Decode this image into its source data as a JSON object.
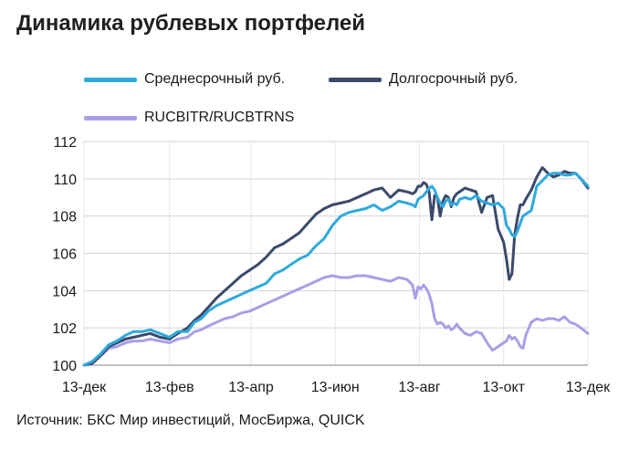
{
  "chart_data": {
    "type": "line",
    "title": "Динамика рублевых портфелей",
    "source": "Источник: БКС Мир инвестиций, МосБиржа, QUICK",
    "ylim": [
      100,
      112
    ],
    "yticks": [
      100,
      102,
      104,
      106,
      108,
      110,
      112
    ],
    "xlim": [
      0,
      365
    ],
    "xticks": [
      {
        "label": "13-дек",
        "x": 0
      },
      {
        "label": "13-фев",
        "x": 62
      },
      {
        "label": "13-апр",
        "x": 121
      },
      {
        "label": "13-июн",
        "x": 182
      },
      {
        "label": "13-авг",
        "x": 243
      },
      {
        "label": "13-окт",
        "x": 304
      },
      {
        "label": "13-дек",
        "x": 365
      }
    ],
    "grid": true,
    "legend_position": "top-left",
    "series": [
      {
        "name": "Среднесрочный руб.",
        "color": "#2eaadc",
        "x": [
          0,
          6,
          12,
          18,
          24,
          30,
          36,
          42,
          48,
          55,
          62,
          68,
          75,
          80,
          85,
          90,
          96,
          102,
          108,
          114,
          120,
          126,
          132,
          138,
          144,
          150,
          156,
          162,
          168,
          174,
          180,
          186,
          192,
          198,
          204,
          210,
          216,
          222,
          228,
          234,
          238,
          240,
          242,
          244,
          246,
          248,
          250,
          252,
          254,
          256,
          258,
          260,
          262,
          264,
          266,
          268,
          270,
          272,
          276,
          280,
          284,
          288,
          292,
          296,
          300,
          304,
          306,
          308,
          310,
          312,
          314,
          316,
          318,
          320,
          324,
          328,
          332,
          336,
          340,
          344,
          348,
          352,
          356,
          360,
          365
        ],
        "values": [
          100.0,
          100.2,
          100.6,
          101.1,
          101.3,
          101.6,
          101.8,
          101.8,
          101.9,
          101.7,
          101.5,
          101.8,
          101.8,
          102.3,
          102.5,
          102.9,
          103.2,
          103.4,
          103.6,
          103.8,
          104.0,
          104.2,
          104.4,
          104.9,
          105.1,
          105.4,
          105.7,
          105.9,
          106.4,
          106.8,
          107.5,
          108.0,
          108.2,
          108.3,
          108.4,
          108.6,
          108.3,
          108.5,
          108.8,
          108.7,
          108.6,
          108.5,
          108.9,
          109.0,
          109.1,
          109.3,
          109.5,
          109.6,
          109.4,
          109.0,
          108.7,
          108.5,
          108.8,
          108.9,
          108.6,
          108.7,
          108.6,
          108.9,
          109.0,
          108.9,
          109.1,
          108.8,
          108.7,
          108.6,
          108.7,
          108.4,
          107.5,
          107.3,
          107.0,
          106.9,
          107.2,
          107.6,
          108.0,
          108.1,
          108.3,
          109.6,
          109.9,
          110.2,
          110.3,
          110.3,
          110.2,
          110.2,
          110.3,
          110.0,
          109.6
        ]
      },
      {
        "name": "Долгосрочный руб.",
        "color": "#3b4a6b",
        "x": [
          0,
          6,
          12,
          18,
          24,
          30,
          36,
          42,
          48,
          55,
          62,
          68,
          75,
          80,
          85,
          90,
          96,
          102,
          108,
          114,
          120,
          126,
          132,
          138,
          144,
          150,
          156,
          162,
          168,
          174,
          180,
          186,
          192,
          198,
          204,
          210,
          216,
          222,
          228,
          234,
          238,
          240,
          242,
          244,
          246,
          248,
          250,
          252,
          254,
          256,
          258,
          260,
          262,
          264,
          266,
          268,
          270,
          272,
          276,
          280,
          284,
          288,
          292,
          296,
          300,
          304,
          306,
          308,
          310,
          312,
          314,
          316,
          318,
          320,
          324,
          328,
          332,
          336,
          340,
          344,
          348,
          352,
          356,
          360,
          365
        ],
        "values": [
          100.0,
          100.1,
          100.5,
          101.0,
          101.2,
          101.4,
          101.5,
          101.6,
          101.7,
          101.5,
          101.4,
          101.7,
          102.0,
          102.4,
          102.7,
          103.1,
          103.6,
          104.0,
          104.4,
          104.8,
          105.1,
          105.4,
          105.8,
          106.3,
          106.5,
          106.8,
          107.1,
          107.6,
          108.1,
          108.4,
          108.6,
          108.7,
          108.8,
          109.0,
          109.2,
          109.4,
          109.5,
          109.0,
          109.4,
          109.3,
          109.2,
          109.3,
          109.6,
          109.6,
          109.8,
          109.7,
          109.3,
          107.8,
          109.1,
          109.0,
          108.0,
          108.8,
          109.1,
          109.0,
          108.5,
          109.0,
          109.2,
          109.3,
          109.5,
          109.4,
          109.3,
          108.2,
          109.0,
          109.1,
          107.3,
          106.6,
          105.7,
          104.6,
          104.9,
          107.0,
          107.9,
          108.6,
          108.6,
          108.9,
          109.4,
          110.1,
          110.6,
          110.3,
          110.1,
          110.2,
          110.4,
          110.3,
          110.3,
          110.0,
          109.5
        ]
      },
      {
        "name": "RUCBITR/RUCBTRNS",
        "color": "#a99fe6",
        "x": [
          0,
          6,
          12,
          18,
          24,
          30,
          36,
          42,
          48,
          55,
          62,
          68,
          75,
          80,
          85,
          90,
          96,
          102,
          108,
          114,
          120,
          126,
          132,
          138,
          144,
          150,
          156,
          162,
          168,
          174,
          180,
          186,
          192,
          198,
          204,
          210,
          216,
          222,
          228,
          234,
          238,
          240,
          242,
          244,
          246,
          248,
          250,
          252,
          254,
          256,
          258,
          260,
          262,
          264,
          266,
          268,
          270,
          272,
          276,
          280,
          284,
          288,
          292,
          296,
          300,
          304,
          306,
          308,
          310,
          312,
          314,
          316,
          318,
          320,
          324,
          328,
          332,
          336,
          340,
          344,
          348,
          352,
          356,
          360,
          365
        ],
        "values": [
          100.0,
          100.1,
          100.5,
          100.9,
          101.0,
          101.2,
          101.3,
          101.3,
          101.4,
          101.3,
          101.2,
          101.4,
          101.5,
          101.8,
          101.9,
          102.1,
          102.3,
          102.5,
          102.6,
          102.8,
          102.9,
          103.1,
          103.3,
          103.5,
          103.7,
          103.9,
          104.1,
          104.3,
          104.5,
          104.7,
          104.8,
          104.7,
          104.7,
          104.8,
          104.8,
          104.7,
          104.6,
          104.5,
          104.7,
          104.6,
          104.3,
          103.6,
          104.2,
          104.1,
          104.3,
          104.1,
          103.8,
          103.3,
          102.5,
          102.2,
          102.3,
          102.2,
          102.0,
          102.1,
          101.9,
          102.0,
          102.2,
          102.0,
          101.7,
          101.6,
          101.8,
          101.7,
          101.2,
          100.8,
          101.0,
          101.2,
          101.3,
          101.6,
          101.4,
          101.5,
          101.3,
          101.0,
          100.9,
          101.6,
          102.3,
          102.5,
          102.4,
          102.5,
          102.5,
          102.4,
          102.6,
          102.3,
          102.2,
          102.0,
          101.7
        ]
      }
    ]
  }
}
